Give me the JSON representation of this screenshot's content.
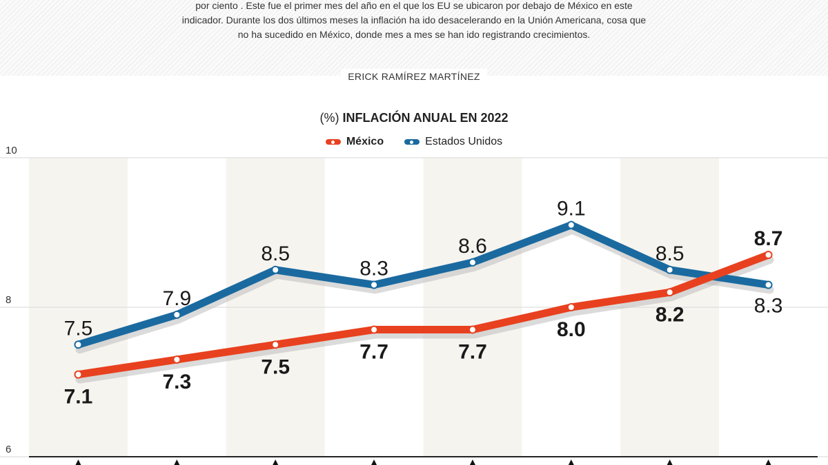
{
  "intro": {
    "lines": [
      "por ciento . Este fue el primer mes del año en el que los EU se ubicaron por debajo de México en este",
      "indicador. Durante los dos últimos meses la inflación ha ido desacelerando en la Unión Americana, cosa que",
      "no ha sucedido en México, donde mes a mes se han ido registrando crecimientos."
    ]
  },
  "author": "ERICK RAMÍREZ MARTÍNEZ",
  "chart_data": {
    "type": "line",
    "title_prefix": "(%)",
    "title": "INFLACIÓN ANUAL EN 2022",
    "ylim": [
      6,
      10
    ],
    "y_ticks": [
      "10",
      "8",
      "6"
    ],
    "grid": "alternating-column-bands",
    "legend_position": "top-center",
    "series": [
      {
        "name": "México",
        "color": "#e8411f",
        "values": [
          7.1,
          7.3,
          7.5,
          7.7,
          7.7,
          8.0,
          8.2,
          8.7
        ],
        "labels": [
          "7.1",
          "7.3",
          "7.5",
          "7.7",
          "7.7",
          "8.0",
          "8.2",
          "8.7"
        ]
      },
      {
        "name": "Estados Unidos",
        "color": "#1a6aa0",
        "values": [
          7.5,
          7.9,
          8.5,
          8.3,
          8.6,
          9.1,
          8.5,
          8.3
        ],
        "labels": [
          "7.5",
          "7.9",
          "8.5",
          "8.3",
          "8.6",
          "9.1",
          "8.5",
          "8.3"
        ]
      }
    ]
  }
}
